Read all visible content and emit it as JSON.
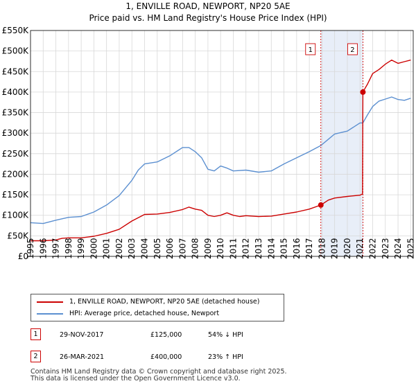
{
  "chart_data": {
    "type": "line",
    "title": "1, ENVILLE ROAD, NEWPORT, NP20 5AE",
    "subtitle": "Price paid vs. HM Land Registry's House Price Index (HPI)",
    "x_range": [
      1995,
      2025.2
    ],
    "ylim": [
      0,
      550000
    ],
    "y_ticks": [
      0,
      50000,
      100000,
      150000,
      200000,
      250000,
      300000,
      350000,
      400000,
      450000,
      500000,
      550000
    ],
    "y_tick_labels": [
      "£0",
      "£50K",
      "£100K",
      "£150K",
      "£200K",
      "£250K",
      "£300K",
      "£350K",
      "£400K",
      "£450K",
      "£500K",
      "£550K"
    ],
    "x_ticks": [
      1995,
      1996,
      1997,
      1998,
      1999,
      2000,
      2001,
      2002,
      2003,
      2004,
      2005,
      2006,
      2007,
      2008,
      2009,
      2010,
      2011,
      2012,
      2013,
      2014,
      2015,
      2016,
      2017,
      2018,
      2019,
      2020,
      2021,
      2022,
      2023,
      2024,
      2025
    ],
    "grid": true,
    "shaded_region": [
      2017.91,
      2021.23
    ],
    "series": [
      {
        "name": "1, ENVILLE ROAD, NEWPORT, NP20 5AE (detached house)",
        "color": "#cc0000",
        "x": [
          1995.0,
          1996.0,
          1997.0,
          1997.5,
          1998.0,
          1999.0,
          2000.0,
          2001.0,
          2002.0,
          2003.0,
          2004.0,
          2005.0,
          2006.0,
          2007.0,
          2007.5,
          2008.0,
          2008.5,
          2009.0,
          2009.5,
          2010.0,
          2010.5,
          2011.0,
          2011.5,
          2012.0,
          2013.0,
          2014.0,
          2015.0,
          2016.0,
          2017.0,
          2017.91,
          2018.5,
          2019.0,
          2020.0,
          2021.0,
          2021.2,
          2021.23,
          2021.6,
          2022.0,
          2022.5,
          2023.0,
          2023.5,
          2024.0,
          2024.5,
          2025.0
        ],
        "values": [
          38000,
          38000,
          40000,
          44000,
          45000,
          45000,
          49000,
          56000,
          66000,
          86000,
          102000,
          103000,
          107000,
          114000,
          120000,
          115000,
          112000,
          100000,
          97000,
          100000,
          106000,
          100000,
          97000,
          99000,
          97000,
          98000,
          103000,
          108000,
          115000,
          125000,
          137000,
          142000,
          146000,
          149000,
          152000,
          400000,
          420000,
          445000,
          455000,
          468000,
          478000,
          470000,
          474000,
          478000
        ]
      },
      {
        "name": "HPI: Average price, detached house, Newport",
        "color": "#5b8fd0",
        "x": [
          1995.0,
          1996.0,
          1997.0,
          1998.0,
          1999.0,
          2000.0,
          2001.0,
          2002.0,
          2003.0,
          2003.5,
          2004.0,
          2005.0,
          2006.0,
          2007.0,
          2007.5,
          2008.0,
          2008.5,
          2009.0,
          2009.5,
          2010.0,
          2010.5,
          2011.0,
          2012.0,
          2013.0,
          2014.0,
          2015.0,
          2016.0,
          2017.0,
          2017.91,
          2018.5,
          2019.0,
          2020.0,
          2021.0,
          2021.23,
          2021.6,
          2022.0,
          2022.5,
          2023.0,
          2023.5,
          2024.0,
          2024.5,
          2025.0
        ],
        "values": [
          82000,
          80000,
          88000,
          95000,
          97000,
          108000,
          125000,
          148000,
          185000,
          210000,
          225000,
          230000,
          245000,
          265000,
          265000,
          255000,
          240000,
          212000,
          208000,
          220000,
          215000,
          208000,
          210000,
          205000,
          208000,
          225000,
          240000,
          255000,
          270000,
          285000,
          298000,
          305000,
          325000,
          325000,
          345000,
          365000,
          378000,
          383000,
          388000,
          382000,
          380000,
          385000
        ]
      }
    ],
    "sales": [
      {
        "label": "1",
        "x": 2017.91,
        "value": 125000,
        "date": "29-NOV-2017",
        "price": "£125,000",
        "hpi_change": "54% ↓ HPI"
      },
      {
        "label": "2",
        "x": 2021.23,
        "value": 400000,
        "date": "26-MAR-2021",
        "price": "£400,000",
        "hpi_change": "23% ↑ HPI"
      }
    ]
  },
  "legend": {
    "entry_property": "1, ENVILLE ROAD, NEWPORT, NP20 5AE (detached house)",
    "entry_hpi": "HPI: Average price, detached house, Newport"
  },
  "footer": {
    "line1": "Contains HM Land Registry data © Crown copyright and database right 2025.",
    "line2": "This data is licensed under the Open Government Licence v3.0."
  }
}
